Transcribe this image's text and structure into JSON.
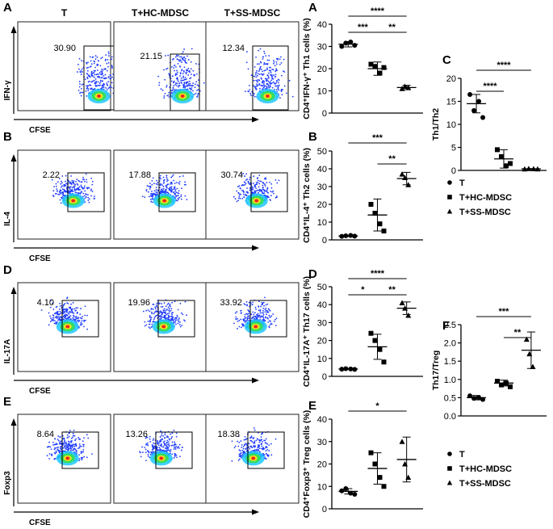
{
  "column_headers": [
    "T",
    "T+HC-MDSC",
    "T+SS-MDSC"
  ],
  "flow_rows": [
    {
      "panel": "A",
      "ylabel": "IFN-γ",
      "xlabel": "CFSE",
      "percents": [
        "30.90",
        "21.15",
        "12.34"
      ]
    },
    {
      "panel": "B",
      "ylabel": "IL-4",
      "xlabel": "CFSE",
      "percents": [
        "2.22",
        "17.88",
        "30.74"
      ]
    },
    {
      "panel": "D",
      "ylabel": "IL-17A",
      "xlabel": "CFSE",
      "percents": [
        "4.10",
        "19.96",
        "33.92"
      ]
    },
    {
      "panel": "E",
      "ylabel": "Foxp3",
      "xlabel": "CFSE",
      "percents": [
        "8.64",
        "13.26",
        "18.38"
      ]
    }
  ],
  "legend": {
    "items": [
      "T",
      "T+HC-MDSC",
      "T+SS-MDSC"
    ],
    "markers": [
      "circle",
      "square",
      "triangle"
    ]
  },
  "chart_data": [
    {
      "panel": "A",
      "type": "scatter",
      "ylabel": "CD4⁺IFN-γ⁺ Th1 cells (%)",
      "ylim": [
        0,
        40
      ],
      "yticks": [
        0,
        10,
        20,
        30,
        40
      ],
      "groups": [
        {
          "name": "T",
          "values": [
            30,
            31.5,
            32,
            30.5
          ],
          "mean": 31,
          "sd": 1.2
        },
        {
          "name": "T+HC-MDSC",
          "values": [
            22,
            21,
            18,
            20.5
          ],
          "mean": 20,
          "sd": 3
        },
        {
          "name": "T+SS-MDSC",
          "values": [
            11,
            12,
            11.5
          ],
          "mean": 11.5,
          "sd": 1
        }
      ],
      "significance": [
        {
          "from": 0,
          "to": 2,
          "label": "****"
        },
        {
          "from": 0,
          "to": 1,
          "label": "***"
        },
        {
          "from": 1,
          "to": 2,
          "label": "**"
        }
      ]
    },
    {
      "panel": "B",
      "type": "scatter",
      "ylabel": "CD4⁺IL-4⁺ Th2 cells (%)",
      "ylim": [
        0,
        50
      ],
      "yticks": [
        0,
        10,
        20,
        30,
        40,
        50
      ],
      "groups": [
        {
          "name": "T",
          "values": [
            2,
            2.3,
            2.5,
            2.1
          ],
          "mean": 2.2,
          "sd": 0.3
        },
        {
          "name": "T+HC-MDSC",
          "values": [
            20,
            15,
            9,
            5
          ],
          "mean": 14,
          "sd": 9
        },
        {
          "name": "T+SS-MDSC",
          "values": [
            37,
            35,
            31
          ],
          "mean": 34.5,
          "sd": 3.5
        }
      ],
      "significance": [
        {
          "from": 0,
          "to": 2,
          "label": "***"
        },
        {
          "from": 1,
          "to": 2,
          "label": "**"
        }
      ]
    },
    {
      "panel": "C",
      "type": "scatter",
      "ylabel": "Th1/Th2",
      "ylim": [
        0,
        20
      ],
      "yticks": [
        0,
        5,
        10,
        15,
        20
      ],
      "groups": [
        {
          "name": "T",
          "values": [
            16.5,
            13,
            15,
            11.5
          ],
          "mean": 14.5,
          "sd": 2
        },
        {
          "name": "T+HC-MDSC",
          "values": [
            4.5,
            3,
            1,
            1.5
          ],
          "mean": 2.5,
          "sd": 2
        },
        {
          "name": "T+SS-MDSC",
          "values": [
            0.3,
            0.4,
            0.35,
            0.3
          ],
          "mean": 0.35,
          "sd": 0.05
        }
      ],
      "significance": [
        {
          "from": 0,
          "to": 2,
          "label": "****"
        },
        {
          "from": 0,
          "to": 1,
          "label": "****"
        }
      ]
    },
    {
      "panel": "D",
      "type": "scatter",
      "ylabel": "CD4⁺IL-17A⁺ Th17 cells (%)",
      "ylim": [
        0,
        50
      ],
      "yticks": [
        0,
        10,
        20,
        30,
        40,
        50
      ],
      "groups": [
        {
          "name": "T",
          "values": [
            4,
            4.3,
            4.1,
            3.9
          ],
          "mean": 4.1,
          "sd": 0.2
        },
        {
          "name": "T+HC-MDSC",
          "values": [
            24,
            20,
            15,
            8
          ],
          "mean": 16.5,
          "sd": 7
        },
        {
          "name": "T+SS-MDSC",
          "values": [
            41,
            38,
            34
          ],
          "mean": 38,
          "sd": 3.5
        }
      ],
      "significance": [
        {
          "from": 0,
          "to": 2,
          "label": "****"
        },
        {
          "from": 0,
          "to": 1,
          "label": "*"
        },
        {
          "from": 1,
          "to": 2,
          "label": "**"
        }
      ]
    },
    {
      "panel": "E",
      "type": "scatter",
      "ylabel": "CD4⁺Foxp3⁺ Treg cells (%)",
      "ylim": [
        0,
        40
      ],
      "yticks": [
        0,
        10,
        20,
        30,
        40
      ],
      "groups": [
        {
          "name": "T",
          "values": [
            8,
            9,
            7,
            6.5
          ],
          "mean": 7.8,
          "sd": 1.2
        },
        {
          "name": "T+HC-MDSC",
          "values": [
            25,
            20,
            14,
            10
          ],
          "mean": 18,
          "sd": 7
        },
        {
          "name": "T+SS-MDSC",
          "values": [
            30,
            20,
            14
          ],
          "mean": 22,
          "sd": 10
        }
      ],
      "significance": [
        {
          "from": 0,
          "to": 2,
          "label": "*"
        }
      ]
    },
    {
      "panel": "F",
      "type": "scatter",
      "ylabel": "Th17/Treg",
      "ylim": [
        0,
        2.5
      ],
      "yticks": [
        "0.0",
        "0.5",
        "1.0",
        "1.5",
        "2.0",
        "2.5"
      ],
      "groups": [
        {
          "name": "T",
          "values": [
            0.55,
            0.48,
            0.5,
            0.45
          ],
          "mean": 0.5,
          "sd": 0.06
        },
        {
          "name": "T+HC-MDSC",
          "values": [
            0.95,
            0.85,
            0.9,
            0.8
          ],
          "mean": 0.9,
          "sd": 0.08
        },
        {
          "name": "T+SS-MDSC",
          "values": [
            2.1,
            1.7,
            1.35
          ],
          "mean": 1.8,
          "sd": 0.5
        }
      ],
      "significance": [
        {
          "from": 0,
          "to": 2,
          "label": "***"
        },
        {
          "from": 1,
          "to": 2,
          "label": "**"
        }
      ]
    }
  ],
  "colors": {
    "flow_blue": "#1f3cff",
    "flow_cyan": "#1ec8ff",
    "flow_green": "#36e04a",
    "flow_yellow": "#f2e11c",
    "flow_red": "#e8291c",
    "axis": "#000000"
  }
}
